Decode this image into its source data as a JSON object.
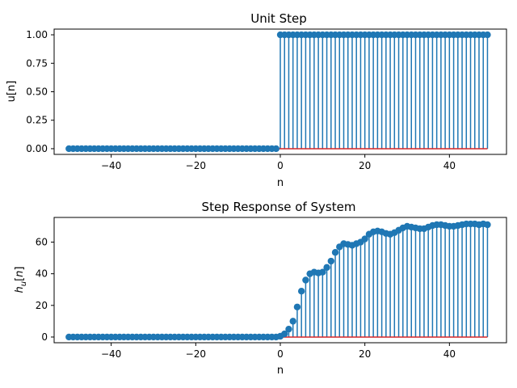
{
  "chart_data": [
    {
      "type": "stem",
      "title": "Unit Step",
      "xlabel": "n",
      "ylabel": "u[n]",
      "xlim": [
        -53.5,
        53.5
      ],
      "ylim": [
        -0.05,
        1.05
      ],
      "xticks": [
        -40,
        -20,
        0,
        20,
        40
      ],
      "xtick_labels": [
        "−40",
        "−20",
        "0",
        "20",
        "40"
      ],
      "yticks": [
        0,
        0.25,
        0.5,
        0.75,
        1.0
      ],
      "ytick_labels": [
        "0.00",
        "0.25",
        "0.50",
        "0.75",
        "1.00"
      ],
      "n_start": -50,
      "values": [
        0,
        0,
        0,
        0,
        0,
        0,
        0,
        0,
        0,
        0,
        0,
        0,
        0,
        0,
        0,
        0,
        0,
        0,
        0,
        0,
        0,
        0,
        0,
        0,
        0,
        0,
        0,
        0,
        0,
        0,
        0,
        0,
        0,
        0,
        0,
        0,
        0,
        0,
        0,
        0,
        0,
        0,
        0,
        0,
        0,
        0,
        0,
        0,
        0,
        0,
        1,
        1,
        1,
        1,
        1,
        1,
        1,
        1,
        1,
        1,
        1,
        1,
        1,
        1,
        1,
        1,
        1,
        1,
        1,
        1,
        1,
        1,
        1,
        1,
        1,
        1,
        1,
        1,
        1,
        1,
        1,
        1,
        1,
        1,
        1,
        1,
        1,
        1,
        1,
        1,
        1,
        1,
        1,
        1,
        1,
        1,
        1,
        1,
        1,
        1
      ]
    },
    {
      "type": "stem",
      "title": "Step Response of System",
      "xlabel": "n",
      "ylabel": "h_u[n]",
      "xlim": [
        -53.5,
        53.5
      ],
      "ylim": [
        -3.6,
        75.6
      ],
      "xticks": [
        -40,
        -20,
        0,
        20,
        40
      ],
      "xtick_labels": [
        "−40",
        "−20",
        "0",
        "20",
        "40"
      ],
      "yticks": [
        0,
        20,
        40,
        60
      ],
      "ytick_labels": [
        "0",
        "20",
        "40",
        "60"
      ],
      "n_start": -50,
      "values": [
        0,
        0,
        0,
        0,
        0,
        0,
        0,
        0,
        0,
        0,
        0,
        0,
        0,
        0,
        0,
        0,
        0,
        0,
        0,
        0,
        0,
        0,
        0,
        0,
        0,
        0,
        0,
        0,
        0,
        0,
        0,
        0,
        0,
        0,
        0,
        0,
        0,
        0,
        0,
        0,
        0,
        0,
        0,
        0,
        0,
        0,
        0,
        0,
        0,
        0,
        0.5,
        2,
        5,
        10,
        19,
        29,
        36,
        40,
        41,
        40.5,
        41,
        44,
        48,
        53.5,
        57,
        59,
        58.5,
        58,
        59,
        60,
        62,
        65,
        66.5,
        67,
        66.5,
        65.5,
        65,
        66,
        67.5,
        69,
        70,
        69.5,
        69,
        68.5,
        68.5,
        69.5,
        70.5,
        71,
        71,
        70.5,
        70,
        70,
        70.5,
        71,
        71.5,
        71.5,
        71.5,
        71,
        71.5,
        71
      ]
    }
  ],
  "colors": {
    "stem": "#1f77b4",
    "baseline": "#d62728",
    "axes": "#000000"
  }
}
